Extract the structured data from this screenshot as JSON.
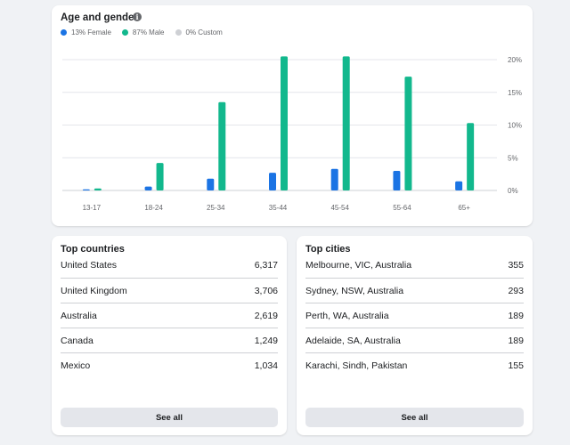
{
  "age_gender": {
    "title": "Age and gender",
    "info_icon": "i",
    "legend": [
      {
        "label": "13% Female",
        "color": "#1b74e4"
      },
      {
        "label": "87% Male",
        "color": "#12b88d"
      },
      {
        "label": "0% Custom",
        "color": "#ced0d4"
      }
    ]
  },
  "chart_data": {
    "type": "bar",
    "title": "Age and gender",
    "categories": [
      "13-17",
      "18-24",
      "25-34",
      "35-44",
      "45-54",
      "55-64",
      "65+"
    ],
    "series": [
      {
        "name": "13% Female",
        "color": "#1b74e4",
        "values": [
          0.1,
          0.6,
          1.8,
          2.7,
          3.3,
          3.0,
          1.4
        ]
      },
      {
        "name": "87% Male",
        "color": "#12b88d",
        "values": [
          0.3,
          4.2,
          13.5,
          20.5,
          20.5,
          17.4,
          10.3
        ]
      },
      {
        "name": "0% Custom",
        "color": "#ced0d4",
        "values": [
          0,
          0,
          0,
          0,
          0,
          0,
          0
        ]
      }
    ],
    "y_ticks": [
      "20%",
      "15%",
      "10%",
      "5%",
      "0%"
    ],
    "y_tick_values": [
      20,
      15,
      10,
      5,
      0
    ],
    "ylim": [
      0,
      20
    ],
    "grid": true,
    "y_axis_side": "right",
    "legend_position": "top-left"
  },
  "top_countries": {
    "title": "Top countries",
    "rows": [
      {
        "name": "United States",
        "value": "6,317"
      },
      {
        "name": "United Kingdom",
        "value": "3,706"
      },
      {
        "name": "Australia",
        "value": "2,619"
      },
      {
        "name": "Canada",
        "value": "1,249"
      },
      {
        "name": "Mexico",
        "value": "1,034"
      }
    ],
    "see_all_label": "See all"
  },
  "top_cities": {
    "title": "Top cities",
    "rows": [
      {
        "name": "Melbourne, VIC, Australia",
        "value": "355"
      },
      {
        "name": "Sydney, NSW, Australia",
        "value": "293"
      },
      {
        "name": "Perth, WA, Australia",
        "value": "189"
      },
      {
        "name": "Adelaide, SA, Australia",
        "value": "189"
      },
      {
        "name": "Karachi, Sindh, Pakistan",
        "value": "155"
      }
    ],
    "see_all_label": "See all"
  }
}
